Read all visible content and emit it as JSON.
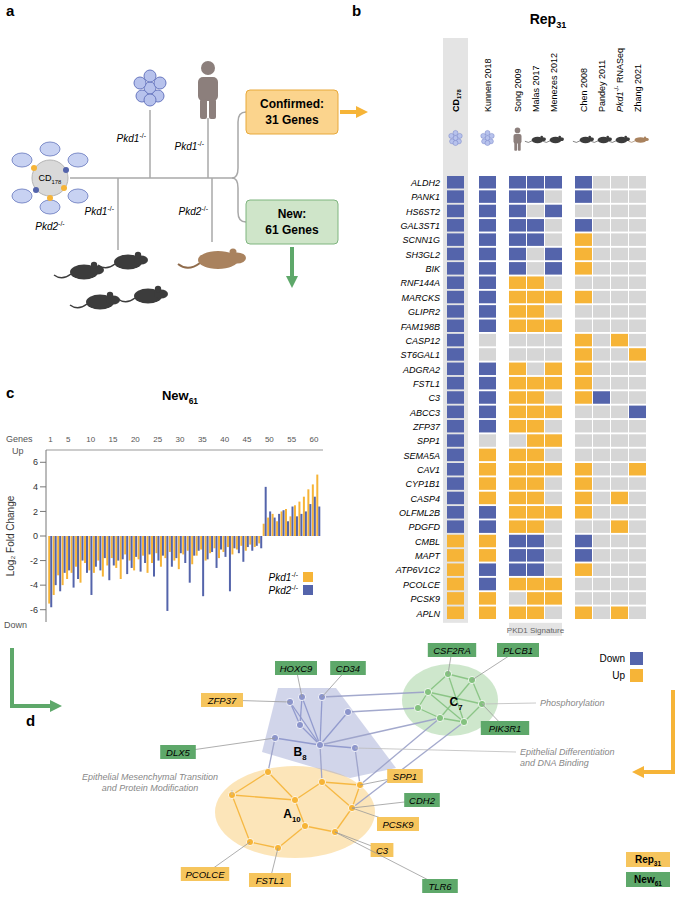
{
  "panel_labels": [
    "a",
    "b",
    "c",
    "d"
  ],
  "panel_a": {
    "cell_label": "CD178",
    "organoid_label": "Pkd1-/-",
    "human_label": "Pkd1-/-",
    "cells_label": "Pkd2-/-",
    "mice_label": "Pkd1-/-",
    "rat_label": "Pkd2-/-",
    "confirmed": [
      "Confirmed:",
      "31 Genes"
    ],
    "new": [
      "New:",
      "61 Genes"
    ]
  },
  "panel_b": {
    "title": "Rep31",
    "columns": [
      "CD178",
      "Kunnen 2018",
      "Song 2009",
      "Malas 2017",
      "Menezes 2012",
      "Chen 2008",
      "Pandey 2011",
      "Pkd1-/- RNASeq",
      "Zhang 2021"
    ],
    "rows": [
      "ALDH2",
      "PANK1",
      "HS6ST2",
      "GAL3ST1",
      "SCNN1G",
      "SH3GL2",
      "BIK",
      "RNF144A",
      "MARCKS",
      "GLIPR2",
      "FAM198B",
      "CASP12",
      "ST6GAL1",
      "ADGRA2",
      "FSTL1",
      "C3",
      "ABCC3",
      "ZFP37",
      "SPP1",
      "SEMA5A",
      "CAV1",
      "CYP1B1",
      "CASP4",
      "OLFML2B",
      "PDGFD",
      "CMBL",
      "MAPT",
      "ATP6V1C2",
      "PCOLCE",
      "PCSK9",
      "APLN"
    ],
    "cells": [
      [
        -1,
        -1,
        -1,
        -1,
        -1,
        -1,
        0,
        0,
        0
      ],
      [
        -1,
        -1,
        -1,
        -1,
        0,
        -1,
        0,
        0,
        0
      ],
      [
        -1,
        -1,
        -1,
        0,
        -1,
        0,
        0,
        0,
        0
      ],
      [
        -1,
        -1,
        -1,
        -1,
        0,
        -1,
        0,
        0,
        0
      ],
      [
        -1,
        -1,
        -1,
        -1,
        0,
        1,
        0,
        0,
        0
      ],
      [
        -1,
        -1,
        -1,
        0,
        -1,
        1,
        0,
        0,
        0
      ],
      [
        -1,
        -1,
        -1,
        0,
        -1,
        1,
        0,
        0,
        0
      ],
      [
        -1,
        -1,
        1,
        1,
        0,
        0,
        0,
        0,
        0
      ],
      [
        -1,
        -1,
        1,
        1,
        1,
        1,
        0,
        0,
        0
      ],
      [
        -1,
        -1,
        1,
        1,
        0,
        0,
        0,
        0,
        0
      ],
      [
        -1,
        -1,
        1,
        1,
        1,
        0,
        0,
        0,
        0
      ],
      [
        -1,
        0,
        0,
        0,
        0,
        1,
        0,
        1,
        0
      ],
      [
        -1,
        0,
        0,
        0,
        0,
        1,
        0,
        0,
        1
      ],
      [
        -1,
        -1,
        1,
        0,
        1,
        1,
        0,
        0,
        0
      ],
      [
        -1,
        -1,
        1,
        1,
        1,
        1,
        0,
        0,
        0
      ],
      [
        -1,
        -1,
        1,
        1,
        0,
        1,
        -1,
        0,
        0
      ],
      [
        -1,
        -1,
        1,
        1,
        1,
        0,
        0,
        0,
        -1
      ],
      [
        -1,
        -1,
        1,
        1,
        0,
        0,
        0,
        0,
        0
      ],
      [
        -1,
        0,
        0,
        1,
        1,
        0,
        0,
        0,
        0
      ],
      [
        -1,
        1,
        1,
        1,
        0,
        0,
        0,
        0,
        0
      ],
      [
        -1,
        1,
        1,
        1,
        1,
        1,
        0,
        0,
        1
      ],
      [
        -1,
        1,
        1,
        1,
        0,
        1,
        0,
        0,
        0
      ],
      [
        -1,
        1,
        1,
        1,
        0,
        1,
        0,
        1,
        0
      ],
      [
        -1,
        -1,
        1,
        1,
        1,
        1,
        0,
        0,
        0
      ],
      [
        -1,
        -1,
        1,
        1,
        0,
        0,
        0,
        1,
        0
      ],
      [
        1,
        1,
        -1,
        -1,
        0,
        -1,
        0,
        0,
        0
      ],
      [
        1,
        1,
        -1,
        -1,
        0,
        -1,
        0,
        0,
        0
      ],
      [
        1,
        -1,
        -1,
        -1,
        0,
        1,
        0,
        0,
        0
      ],
      [
        1,
        -1,
        1,
        1,
        1,
        0,
        0,
        0,
        0
      ],
      [
        1,
        1,
        0,
        1,
        1,
        0,
        0,
        0,
        0
      ],
      [
        1,
        1,
        1,
        1,
        0,
        1,
        0,
        1,
        0
      ]
    ],
    "signature": {
      "label": "PKD1 Signature",
      "columns": [
        2,
        3,
        4
      ]
    },
    "legend": [
      {
        "label": "Down",
        "value": -1,
        "color": "#5464ab"
      },
      {
        "label": "Up",
        "value": 1,
        "color": "#f6b437"
      }
    ]
  },
  "chart_data": {
    "type": "bar",
    "title": "New61",
    "x_label": "Genes",
    "y_label": "Log₂ Fold Change",
    "annotations": [
      "Up",
      "Down"
    ],
    "x": [
      1,
      2,
      3,
      4,
      5,
      6,
      7,
      8,
      9,
      10,
      11,
      12,
      13,
      14,
      15,
      16,
      17,
      18,
      19,
      20,
      21,
      22,
      23,
      24,
      25,
      26,
      27,
      28,
      29,
      30,
      31,
      32,
      33,
      34,
      35,
      36,
      37,
      38,
      39,
      40,
      41,
      42,
      43,
      44,
      45,
      46,
      47,
      48,
      49,
      50,
      51,
      52,
      53,
      54,
      55,
      56,
      57,
      58,
      59,
      60,
      61
    ],
    "xlim": [
      0,
      62
    ],
    "xticks": [
      1,
      5,
      10,
      15,
      20,
      25,
      30,
      35,
      40,
      45,
      50,
      55,
      60
    ],
    "ylim": [
      -7,
      7
    ],
    "yticks": [
      -6,
      -4,
      -2,
      0,
      2,
      4,
      6
    ],
    "legend": "bottom-right",
    "series": [
      {
        "name": "Pkd1-/-",
        "color": "#f6b437",
        "values": [
          -5.5,
          -4.8,
          -3.2,
          -4.0,
          -3.5,
          -3.0,
          -2.5,
          -3.8,
          -2.2,
          -2.8,
          -3.0,
          -2.0,
          -3.3,
          -2.4,
          -1.8,
          -2.6,
          -3.5,
          -1.5,
          -2.0,
          -2.8,
          -1.9,
          -1.6,
          -3.0,
          -2.2,
          -1.4,
          -2.5,
          -1.8,
          -1.3,
          -2.0,
          -2.7,
          -1.5,
          -1.2,
          -2.3,
          -1.6,
          -1.1,
          -2.0,
          -1.4,
          -1.0,
          -1.8,
          -1.3,
          -0.9,
          -1.5,
          -1.1,
          -0.8,
          -1.2,
          -0.7,
          -0.9,
          -0.6,
          1.0,
          1.5,
          1.8,
          1.2,
          2.0,
          2.2,
          1.6,
          2.5,
          2.8,
          3.2,
          3.8,
          4.2,
          5.0
        ]
      },
      {
        "name": "Pkd2-/-",
        "color": "#5464ab",
        "values": [
          -5.8,
          -4.0,
          -4.5,
          -3.0,
          -2.8,
          -4.2,
          -3.5,
          -2.0,
          -3.0,
          -4.8,
          -2.5,
          -2.8,
          -1.8,
          -3.6,
          -2.4,
          -2.0,
          -1.9,
          -3.1,
          -2.6,
          -1.7,
          -2.9,
          -2.2,
          -1.5,
          -3.3,
          -2.0,
          -1.6,
          -6.1,
          -2.5,
          -1.8,
          -1.4,
          -2.2,
          -3.8,
          -1.6,
          -1.2,
          -4.9,
          -1.9,
          -1.3,
          -2.6,
          -1.1,
          -1.7,
          -4.5,
          -1.0,
          -1.4,
          -2.1,
          -0.9,
          -1.2,
          -0.8,
          -1.0,
          4.0,
          2.0,
          1.5,
          1.8,
          2.1,
          1.2,
          2.4,
          1.6,
          1.8,
          2.0,
          2.6,
          3.2,
          2.4
        ]
      }
    ]
  },
  "panel_d": {
    "clusters": [
      {
        "name": "A10",
        "color": "#f6b437",
        "caption": [
          "Epithelial Mesenchymal Transition",
          "and Protein Modification"
        ]
      },
      {
        "name": "B8",
        "color": "#8c95cb",
        "caption": [
          "Epithelial Differentiation",
          "and DNA Binding"
        ]
      },
      {
        "name": "C7",
        "color": "#84c27f",
        "caption": [
          "Phosphorylation"
        ]
      }
    ],
    "labels": [
      {
        "gene": "ZFP37",
        "set": "Rep31"
      },
      {
        "gene": "HOXC9",
        "set": "New61"
      },
      {
        "gene": "CD34",
        "set": "New61"
      },
      {
        "gene": "CSF2RA",
        "set": "New61"
      },
      {
        "gene": "PLCB1",
        "set": "New61"
      },
      {
        "gene": "PIK3R1",
        "set": "New61"
      },
      {
        "gene": "DLX5",
        "set": "New61"
      },
      {
        "gene": "SPP1",
        "set": "Rep31"
      },
      {
        "gene": "CDH2",
        "set": "New61"
      },
      {
        "gene": "PCSK9",
        "set": "Rep31"
      },
      {
        "gene": "C3",
        "set": "Rep31"
      },
      {
        "gene": "PCOLCE",
        "set": "Rep31"
      },
      {
        "gene": "FSTL1",
        "set": "Rep31"
      },
      {
        "gene": "TLR6",
        "set": "New61"
      }
    ],
    "legend": [
      {
        "label": "Rep31",
        "color": "#f6c55d"
      },
      {
        "label": "New61",
        "color": "#5ea86a"
      }
    ]
  }
}
